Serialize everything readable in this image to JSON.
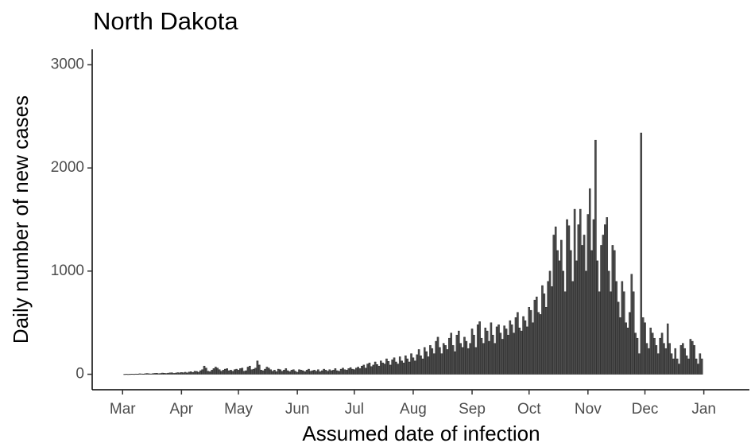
{
  "chart_data": {
    "type": "bar",
    "title": "North Dakota",
    "xlabel": "Assumed date of infection",
    "ylabel": "Daily number of new cases",
    "color": "#4d4d4d",
    "edgecolor": "#1a1a1a",
    "grid": false,
    "xlim": [
      -16,
      330
    ],
    "ylim": [
      -150,
      3150
    ],
    "yticks": [
      0,
      1000,
      2000,
      3000
    ],
    "xticks": [
      {
        "value": 0,
        "label": "Mar"
      },
      {
        "value": 31,
        "label": "Apr"
      },
      {
        "value": 61,
        "label": "May"
      },
      {
        "value": 92,
        "label": "Jun"
      },
      {
        "value": 122,
        "label": "Jul"
      },
      {
        "value": 153,
        "label": "Aug"
      },
      {
        "value": 184,
        "label": "Sep"
      },
      {
        "value": 214,
        "label": "Oct"
      },
      {
        "value": 245,
        "label": "Nov"
      },
      {
        "value": 275,
        "label": "Dec"
      },
      {
        "value": 306,
        "label": "Jan"
      }
    ],
    "x": [
      1,
      2,
      3,
      4,
      5,
      6,
      7,
      8,
      9,
      10,
      11,
      12,
      13,
      14,
      15,
      16,
      17,
      18,
      19,
      20,
      21,
      22,
      23,
      24,
      25,
      26,
      27,
      28,
      29,
      30,
      31,
      32,
      33,
      34,
      35,
      36,
      37,
      38,
      39,
      40,
      41,
      42,
      43,
      44,
      45,
      46,
      47,
      48,
      49,
      50,
      51,
      52,
      53,
      54,
      55,
      56,
      57,
      58,
      59,
      60,
      61,
      62,
      63,
      64,
      65,
      66,
      67,
      68,
      69,
      70,
      71,
      72,
      73,
      74,
      75,
      76,
      77,
      78,
      79,
      80,
      81,
      82,
      83,
      84,
      85,
      86,
      87,
      88,
      89,
      90,
      91,
      92,
      93,
      94,
      95,
      96,
      97,
      98,
      99,
      100,
      101,
      102,
      103,
      104,
      105,
      106,
      107,
      108,
      109,
      110,
      111,
      112,
      113,
      114,
      115,
      116,
      117,
      118,
      119,
      120,
      121,
      122,
      123,
      124,
      125,
      126,
      127,
      128,
      129,
      130,
      131,
      132,
      133,
      134,
      135,
      136,
      137,
      138,
      139,
      140,
      141,
      142,
      143,
      144,
      145,
      146,
      147,
      148,
      149,
      150,
      151,
      152,
      153,
      154,
      155,
      156,
      157,
      158,
      159,
      160,
      161,
      162,
      163,
      164,
      165,
      166,
      167,
      168,
      169,
      170,
      171,
      172,
      173,
      174,
      175,
      176,
      177,
      178,
      179,
      180,
      181,
      182,
      183,
      184,
      185,
      186,
      187,
      188,
      189,
      190,
      191,
      192,
      193,
      194,
      195,
      196,
      197,
      198,
      199,
      200,
      201,
      202,
      203,
      204,
      205,
      206,
      207,
      208,
      209,
      210,
      211,
      212,
      213,
      214,
      215,
      216,
      217,
      218,
      219,
      220,
      221,
      222,
      223,
      224,
      225,
      226,
      227,
      228,
      229,
      230,
      231,
      232,
      233,
      234,
      235,
      236,
      237,
      238,
      239,
      240,
      241,
      242,
      243,
      244,
      245,
      246,
      247,
      248,
      249,
      250,
      251,
      252,
      253,
      254,
      255,
      256,
      257,
      258,
      259,
      260,
      261,
      262,
      263,
      264,
      265,
      266,
      267,
      268,
      269,
      270,
      271,
      272,
      273,
      274,
      275,
      276,
      277,
      278,
      279,
      280,
      281,
      282,
      283,
      284,
      285,
      286,
      287,
      288,
      289,
      290,
      291,
      292,
      293,
      294,
      295,
      296,
      297,
      298,
      299,
      300,
      301,
      302,
      303,
      304,
      305
    ],
    "values": [
      0,
      1,
      0,
      1,
      2,
      1,
      3,
      2,
      5,
      4,
      3,
      6,
      8,
      5,
      4,
      7,
      9,
      10,
      6,
      8,
      12,
      10,
      8,
      11,
      14,
      15,
      9,
      12,
      16,
      14,
      18,
      15,
      20,
      13,
      22,
      25,
      18,
      30,
      28,
      20,
      35,
      45,
      80,
      60,
      30,
      25,
      40,
      55,
      70,
      60,
      45,
      30,
      40,
      50,
      55,
      35,
      40,
      30,
      45,
      50,
      40,
      55,
      60,
      30,
      35,
      70,
      80,
      45,
      50,
      60,
      130,
      90,
      40,
      35,
      50,
      70,
      60,
      45,
      30,
      40,
      25,
      50,
      45,
      30,
      40,
      55,
      35,
      25,
      40,
      45,
      30,
      20,
      45,
      40,
      35,
      25,
      40,
      50,
      30,
      35,
      40,
      30,
      45,
      25,
      35,
      50,
      40,
      30,
      45,
      35,
      40,
      55,
      35,
      30,
      50,
      60,
      45,
      40,
      55,
      65,
      50,
      45,
      60,
      70,
      55,
      80,
      90,
      60,
      100,
      110,
      75,
      90,
      120,
      95,
      80,
      130,
      110,
      100,
      150,
      125,
      90,
      140,
      160,
      120,
      100,
      170,
      130,
      110,
      180,
      150,
      120,
      200,
      160,
      130,
      190,
      240,
      180,
      150,
      260,
      220,
      170,
      280,
      250,
      200,
      320,
      360,
      260,
      200,
      300,
      280,
      240,
      350,
      400,
      280,
      220,
      380,
      420,
      300,
      260,
      360,
      320,
      250,
      300,
      440,
      380,
      260,
      480,
      510,
      350,
      300,
      450,
      420,
      320,
      500,
      380,
      300,
      460,
      480,
      400,
      340,
      470,
      440,
      380,
      520,
      480,
      400,
      550,
      600,
      450,
      420,
      560,
      520,
      460,
      650,
      620,
      500,
      720,
      750,
      600,
      580,
      860,
      780,
      650,
      900,
      1000,
      850,
      1350,
      1430,
      1200,
      1100,
      1300,
      1000,
      800,
      1500,
      1440,
      1200,
      900,
      1600,
      1100,
      1450,
      1600,
      1250,
      1350,
      1000,
      1550,
      1800,
      1200,
      1500,
      2270,
      1100,
      800,
      1250,
      1350,
      1450,
      1520,
      1000,
      800,
      1250,
      1200,
      900,
      700,
      550,
      900,
      800,
      500,
      450,
      600,
      970,
      800,
      400,
      350,
      200,
      2340,
      550,
      500,
      300,
      250,
      450,
      400,
      350,
      280,
      200,
      350,
      400,
      300,
      250,
      490,
      300,
      200,
      150,
      250,
      150,
      100,
      280,
      300,
      250,
      180,
      150,
      340,
      320,
      280,
      150,
      100,
      200,
      150
    ]
  }
}
